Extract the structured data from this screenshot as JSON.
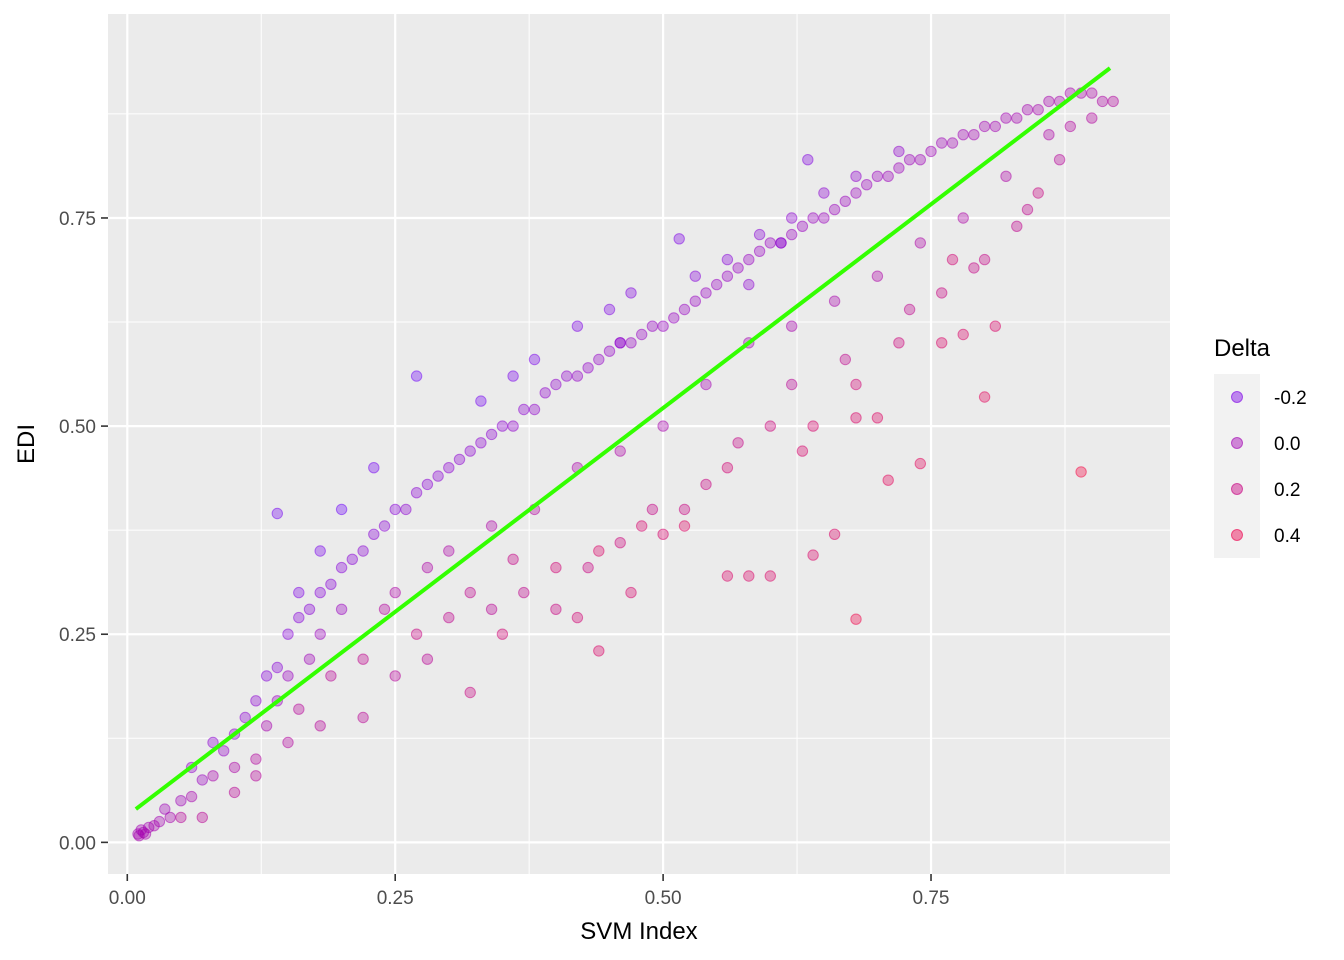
{
  "chart_data": {
    "type": "scatter",
    "title": "",
    "xlabel": "SVM Index",
    "ylabel": "EDI",
    "xlim": [
      -0.018,
      0.973
    ],
    "ylim": [
      -0.038,
      0.995
    ],
    "x_ticks": [
      0.0,
      0.25,
      0.5,
      0.75
    ],
    "x_tick_labels": [
      "0.00",
      "0.25",
      "0.50",
      "0.75"
    ],
    "y_ticks": [
      0.0,
      0.25,
      0.5,
      0.75
    ],
    "y_tick_labels": [
      "0.00",
      "0.25",
      "0.50",
      "0.75"
    ],
    "grid": true,
    "point_opacity": 0.35,
    "fit_line": {
      "color": "#33ff00",
      "x": [
        0.008,
        0.917
      ],
      "y": [
        0.04,
        0.93
      ]
    },
    "color_scale": {
      "low_color": "#6a00ff",
      "high_color": "#ff0033",
      "domain": [
        -0.3,
        0.5
      ]
    },
    "legend": {
      "title": "Delta",
      "placement": "right",
      "entries": [
        {
          "label": "-0.2",
          "value": -0.2
        },
        {
          "label": "0.0",
          "value": 0.0
        },
        {
          "label": "0.2",
          "value": 0.2
        },
        {
          "label": "0.4",
          "value": 0.4
        }
      ]
    },
    "points": [
      [
        0.01,
        0.01,
        0.0
      ],
      [
        0.015,
        0.012,
        0.0
      ],
      [
        0.02,
        0.018,
        0.0
      ],
      [
        0.03,
        0.025,
        0.0
      ],
      [
        0.04,
        0.03,
        0.02
      ],
      [
        0.05,
        0.05,
        -0.02
      ],
      [
        0.06,
        0.055,
        0.02
      ],
      [
        0.07,
        0.075,
        -0.05
      ],
      [
        0.08,
        0.08,
        0.03
      ],
      [
        0.09,
        0.11,
        -0.08
      ],
      [
        0.1,
        0.13,
        -0.1
      ],
      [
        0.1,
        0.09,
        0.05
      ],
      [
        0.11,
        0.15,
        -0.12
      ],
      [
        0.12,
        0.17,
        -0.12
      ],
      [
        0.12,
        0.1,
        0.08
      ],
      [
        0.13,
        0.2,
        -0.15
      ],
      [
        0.13,
        0.14,
        0.02
      ],
      [
        0.14,
        0.21,
        -0.14
      ],
      [
        0.14,
        0.17,
        -0.05
      ],
      [
        0.15,
        0.25,
        -0.15
      ],
      [
        0.15,
        0.2,
        -0.05
      ],
      [
        0.16,
        0.27,
        -0.15
      ],
      [
        0.16,
        0.16,
        0.1
      ],
      [
        0.17,
        0.28,
        -0.14
      ],
      [
        0.17,
        0.22,
        -0.02
      ],
      [
        0.18,
        0.3,
        -0.15
      ],
      [
        0.18,
        0.25,
        -0.04
      ],
      [
        0.19,
        0.31,
        -0.14
      ],
      [
        0.19,
        0.2,
        0.12
      ],
      [
        0.2,
        0.33,
        -0.15
      ],
      [
        0.2,
        0.28,
        -0.05
      ],
      [
        0.21,
        0.34,
        -0.14
      ],
      [
        0.22,
        0.35,
        -0.13
      ],
      [
        0.22,
        0.22,
        0.15
      ],
      [
        0.23,
        0.37,
        -0.14
      ],
      [
        0.24,
        0.38,
        -0.13
      ],
      [
        0.24,
        0.28,
        0.08
      ],
      [
        0.25,
        0.4,
        -0.14
      ],
      [
        0.25,
        0.3,
        0.05
      ],
      [
        0.26,
        0.4,
        -0.12
      ],
      [
        0.27,
        0.42,
        -0.13
      ],
      [
        0.27,
        0.25,
        0.2
      ],
      [
        0.28,
        0.43,
        -0.13
      ],
      [
        0.28,
        0.33,
        0.05
      ],
      [
        0.29,
        0.44,
        -0.13
      ],
      [
        0.3,
        0.45,
        -0.12
      ],
      [
        0.3,
        0.35,
        0.05
      ],
      [
        0.31,
        0.46,
        -0.12
      ],
      [
        0.32,
        0.47,
        -0.12
      ],
      [
        0.32,
        0.3,
        0.15
      ],
      [
        0.33,
        0.48,
        -0.12
      ],
      [
        0.34,
        0.49,
        -0.12
      ],
      [
        0.34,
        0.38,
        0.05
      ],
      [
        0.35,
        0.5,
        -0.12
      ],
      [
        0.36,
        0.5,
        -0.1
      ],
      [
        0.36,
        0.34,
        0.18
      ],
      [
        0.37,
        0.52,
        -0.12
      ],
      [
        0.38,
        0.52,
        -0.1
      ],
      [
        0.38,
        0.4,
        0.08
      ],
      [
        0.39,
        0.54,
        -0.1
      ],
      [
        0.4,
        0.55,
        -0.1
      ],
      [
        0.4,
        0.33,
        0.25
      ],
      [
        0.41,
        0.56,
        -0.1
      ],
      [
        0.42,
        0.56,
        -0.08
      ],
      [
        0.42,
        0.45,
        0.04
      ],
      [
        0.43,
        0.57,
        -0.09
      ],
      [
        0.44,
        0.58,
        -0.08
      ],
      [
        0.44,
        0.35,
        0.3
      ],
      [
        0.45,
        0.59,
        -0.08
      ],
      [
        0.46,
        0.6,
        -0.08
      ],
      [
        0.46,
        0.47,
        0.05
      ],
      [
        0.47,
        0.6,
        -0.07
      ],
      [
        0.48,
        0.61,
        -0.07
      ],
      [
        0.48,
        0.38,
        0.28
      ],
      [
        0.49,
        0.62,
        -0.07
      ],
      [
        0.5,
        0.62,
        -0.06
      ],
      [
        0.5,
        0.5,
        0.02
      ],
      [
        0.51,
        0.63,
        -0.06
      ],
      [
        0.52,
        0.64,
        -0.06
      ],
      [
        0.52,
        0.38,
        0.32
      ],
      [
        0.53,
        0.65,
        -0.06
      ],
      [
        0.54,
        0.66,
        -0.06
      ],
      [
        0.54,
        0.55,
        0.0
      ],
      [
        0.55,
        0.67,
        -0.06
      ],
      [
        0.56,
        0.68,
        -0.06
      ],
      [
        0.56,
        0.45,
        0.25
      ],
      [
        0.57,
        0.69,
        -0.06
      ],
      [
        0.58,
        0.7,
        -0.06
      ],
      [
        0.58,
        0.6,
        0.0
      ],
      [
        0.59,
        0.71,
        -0.06
      ],
      [
        0.6,
        0.72,
        -0.06
      ],
      [
        0.6,
        0.5,
        0.22
      ],
      [
        0.61,
        0.72,
        -0.05
      ],
      [
        0.62,
        0.73,
        -0.05
      ],
      [
        0.62,
        0.62,
        0.02
      ],
      [
        0.63,
        0.74,
        -0.05
      ],
      [
        0.64,
        0.75,
        -0.05
      ],
      [
        0.64,
        0.5,
        0.28
      ],
      [
        0.65,
        0.75,
        -0.04
      ],
      [
        0.66,
        0.76,
        -0.04
      ],
      [
        0.66,
        0.65,
        0.03
      ],
      [
        0.67,
        0.77,
        -0.04
      ],
      [
        0.68,
        0.78,
        -0.04
      ],
      [
        0.68,
        0.55,
        0.25
      ],
      [
        0.69,
        0.79,
        -0.04
      ],
      [
        0.7,
        0.8,
        -0.04
      ],
      [
        0.7,
        0.68,
        0.05
      ],
      [
        0.71,
        0.8,
        -0.03
      ],
      [
        0.72,
        0.81,
        -0.03
      ],
      [
        0.72,
        0.6,
        0.22
      ],
      [
        0.73,
        0.82,
        -0.03
      ],
      [
        0.74,
        0.82,
        -0.02
      ],
      [
        0.74,
        0.72,
        0.05
      ],
      [
        0.75,
        0.83,
        -0.02
      ],
      [
        0.76,
        0.84,
        -0.02
      ],
      [
        0.76,
        0.66,
        0.2
      ],
      [
        0.77,
        0.84,
        -0.01
      ],
      [
        0.78,
        0.85,
        -0.01
      ],
      [
        0.78,
        0.75,
        0.05
      ],
      [
        0.79,
        0.85,
        0.0
      ],
      [
        0.8,
        0.86,
        0.0
      ],
      [
        0.8,
        0.7,
        0.18
      ],
      [
        0.81,
        0.86,
        0.0
      ],
      [
        0.82,
        0.87,
        0.0
      ],
      [
        0.82,
        0.8,
        0.05
      ],
      [
        0.83,
        0.87,
        0.01
      ],
      [
        0.84,
        0.88,
        0.01
      ],
      [
        0.84,
        0.76,
        0.15
      ],
      [
        0.85,
        0.88,
        0.02
      ],
      [
        0.86,
        0.89,
        0.02
      ],
      [
        0.86,
        0.85,
        0.05
      ],
      [
        0.87,
        0.89,
        0.03
      ],
      [
        0.88,
        0.9,
        0.03
      ],
      [
        0.88,
        0.86,
        0.08
      ],
      [
        0.89,
        0.9,
        0.04
      ],
      [
        0.9,
        0.9,
        0.05
      ],
      [
        0.9,
        0.87,
        0.08
      ],
      [
        0.91,
        0.89,
        0.06
      ],
      [
        0.92,
        0.89,
        0.08
      ],
      [
        0.14,
        0.395,
        -0.25
      ],
      [
        0.27,
        0.56,
        -0.28
      ],
      [
        0.515,
        0.725,
        -0.2
      ],
      [
        0.635,
        0.82,
        -0.18
      ],
      [
        0.89,
        0.445,
        0.45
      ],
      [
        0.68,
        0.268,
        0.42
      ],
      [
        0.44,
        0.23,
        0.3
      ],
      [
        0.32,
        0.18,
        0.2
      ],
      [
        0.56,
        0.32,
        0.3
      ],
      [
        0.58,
        0.32,
        0.3
      ],
      [
        0.74,
        0.455,
        0.35
      ],
      [
        0.71,
        0.435,
        0.35
      ],
      [
        0.6,
        0.32,
        0.3
      ],
      [
        0.64,
        0.345,
        0.3
      ],
      [
        0.66,
        0.37,
        0.3
      ],
      [
        0.8,
        0.535,
        0.35
      ],
      [
        0.68,
        0.51,
        0.3
      ],
      [
        0.7,
        0.51,
        0.32
      ],
      [
        0.76,
        0.6,
        0.3
      ],
      [
        0.78,
        0.61,
        0.3
      ],
      [
        0.81,
        0.62,
        0.3
      ],
      [
        0.77,
        0.7,
        0.25
      ],
      [
        0.85,
        0.78,
        0.2
      ],
      [
        0.63,
        0.47,
        0.28
      ],
      [
        0.5,
        0.37,
        0.28
      ],
      [
        0.47,
        0.3,
        0.28
      ],
      [
        0.42,
        0.27,
        0.25
      ],
      [
        0.35,
        0.25,
        0.25
      ],
      [
        0.3,
        0.27,
        0.15
      ],
      [
        0.52,
        0.4,
        0.2
      ],
      [
        0.08,
        0.12,
        -0.12
      ],
      [
        0.06,
        0.09,
        -0.1
      ],
      [
        0.05,
        0.03,
        0.1
      ],
      [
        0.07,
        0.03,
        0.12
      ],
      [
        0.1,
        0.06,
        0.12
      ],
      [
        0.2,
        0.4,
        -0.28
      ],
      [
        0.23,
        0.45,
        -0.25
      ],
      [
        0.33,
        0.53,
        -0.25
      ],
      [
        0.36,
        0.56,
        -0.22
      ],
      [
        0.38,
        0.58,
        -0.22
      ],
      [
        0.42,
        0.62,
        -0.2
      ],
      [
        0.45,
        0.64,
        -0.2
      ],
      [
        0.47,
        0.66,
        -0.18
      ],
      [
        0.53,
        0.68,
        -0.15
      ],
      [
        0.56,
        0.7,
        -0.15
      ],
      [
        0.59,
        0.73,
        -0.14
      ],
      [
        0.62,
        0.75,
        -0.12
      ],
      [
        0.65,
        0.78,
        -0.12
      ],
      [
        0.68,
        0.8,
        -0.1
      ],
      [
        0.72,
        0.83,
        -0.1
      ],
      [
        0.58,
        0.67,
        -0.12
      ],
      [
        0.61,
        0.72,
        -0.14
      ],
      [
        0.46,
        0.6,
        -0.12
      ],
      [
        0.18,
        0.35,
        -0.22
      ],
      [
        0.16,
        0.3,
        -0.2
      ],
      [
        0.22,
        0.15,
        0.12
      ],
      [
        0.25,
        0.2,
        0.1
      ],
      [
        0.28,
        0.22,
        0.12
      ],
      [
        0.34,
        0.28,
        0.12
      ],
      [
        0.37,
        0.3,
        0.15
      ],
      [
        0.4,
        0.28,
        0.2
      ],
      [
        0.43,
        0.33,
        0.2
      ],
      [
        0.46,
        0.36,
        0.22
      ],
      [
        0.49,
        0.4,
        0.18
      ],
      [
        0.54,
        0.43,
        0.2
      ],
      [
        0.57,
        0.48,
        0.18
      ],
      [
        0.62,
        0.55,
        0.12
      ],
      [
        0.67,
        0.58,
        0.15
      ],
      [
        0.73,
        0.64,
        0.15
      ],
      [
        0.79,
        0.69,
        0.18
      ],
      [
        0.83,
        0.74,
        0.15
      ],
      [
        0.87,
        0.82,
        0.1
      ],
      [
        0.12,
        0.08,
        0.1
      ],
      [
        0.15,
        0.12,
        0.08
      ],
      [
        0.18,
        0.14,
        0.1
      ],
      [
        0.011,
        0.008,
        0.02
      ],
      [
        0.013,
        0.015,
        0.0
      ],
      [
        0.017,
        0.01,
        0.02
      ],
      [
        0.025,
        0.02,
        0.02
      ],
      [
        0.035,
        0.04,
        -0.02
      ]
    ]
  }
}
